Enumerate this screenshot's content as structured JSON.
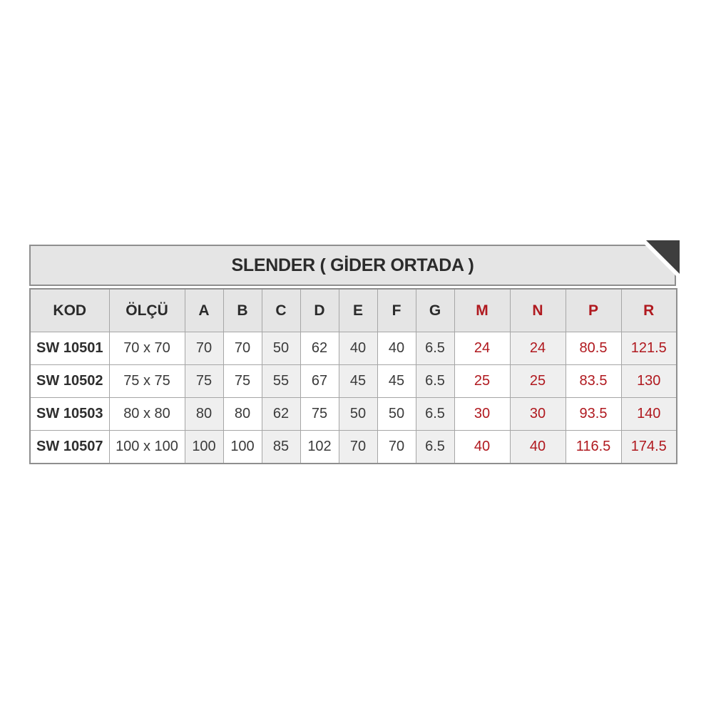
{
  "title": "SLENDER ( GİDER ORTADA )",
  "table": {
    "columns": [
      {
        "label": "KOD",
        "red": false
      },
      {
        "label": "ÖLÇÜ",
        "red": false
      },
      {
        "label": "A",
        "red": false
      },
      {
        "label": "B",
        "red": false
      },
      {
        "label": "C",
        "red": false
      },
      {
        "label": "D",
        "red": false
      },
      {
        "label": "E",
        "red": false
      },
      {
        "label": "F",
        "red": false
      },
      {
        "label": "G",
        "red": false
      },
      {
        "label": "M",
        "red": true
      },
      {
        "label": "N",
        "red": true
      },
      {
        "label": "P",
        "red": true
      },
      {
        "label": "R",
        "red": true
      }
    ],
    "rows": [
      {
        "cells": [
          "SW 10501",
          "70 x 70",
          "70",
          "70",
          "50",
          "62",
          "40",
          "40",
          "6.5",
          "24",
          "24",
          "80.5",
          "121.5"
        ]
      },
      {
        "cells": [
          "SW 10502",
          "75 x 75",
          "75",
          "75",
          "55",
          "67",
          "45",
          "45",
          "6.5",
          "25",
          "25",
          "83.5",
          "130"
        ]
      },
      {
        "cells": [
          "SW 10503",
          "80 x 80",
          "80",
          "80",
          "62",
          "75",
          "50",
          "50",
          "6.5",
          "30",
          "30",
          "93.5",
          "140"
        ]
      },
      {
        "cells": [
          "SW 10507",
          "100 x 100",
          "100",
          "100",
          "85",
          "102",
          "70",
          "70",
          "6.5",
          "40",
          "40",
          "116.5",
          "174.5"
        ]
      }
    ]
  },
  "colors": {
    "accent_red": "#b0191f",
    "header_bg": "#e5e5e5",
    "shaded_cell_bg": "#efefef",
    "cell_border": "#a6a6a6",
    "outer_border": "#8f8f8f",
    "corner_triangle": "#3e3e3e"
  }
}
